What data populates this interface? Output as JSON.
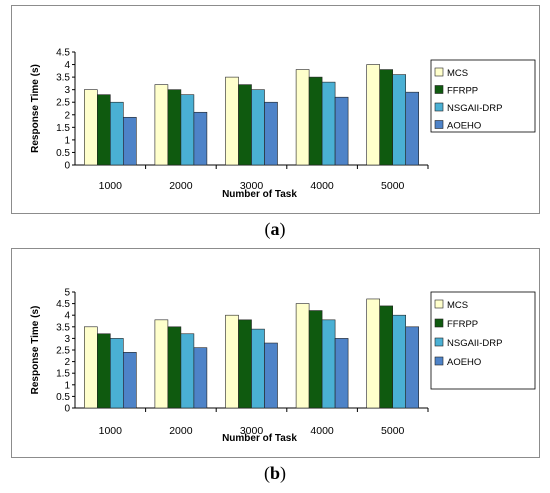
{
  "captions": {
    "a": {
      "open": "(",
      "letter": "a",
      "close": ")"
    },
    "b": {
      "open": "(",
      "letter": "b",
      "close": ")"
    }
  },
  "colors": {
    "MCS": "#ffffcc",
    "FFRPP": "#0f5a0f",
    "NSGAII-DRP": "#4ab0d4",
    "AOEHO": "#4e83c8",
    "grid": "#000000",
    "frame": "#8c8c8c"
  },
  "chart_data": [
    {
      "id": "a",
      "type": "bar",
      "categories": [
        "1000",
        "2000",
        "3000",
        "4000",
        "5000"
      ],
      "series": [
        {
          "name": "MCS",
          "values": [
            3.0,
            3.2,
            3.5,
            3.8,
            4.0
          ]
        },
        {
          "name": "FFRPP",
          "values": [
            2.8,
            3.0,
            3.2,
            3.5,
            3.8
          ]
        },
        {
          "name": "NSGAII-DRP",
          "values": [
            2.5,
            2.8,
            3.0,
            3.3,
            3.6
          ]
        },
        {
          "name": "AOEHO",
          "values": [
            1.9,
            2.1,
            2.5,
            2.7,
            2.9
          ]
        }
      ],
      "yticks": [
        "0",
        "0.5",
        "1",
        "1.5",
        "2",
        "2.5",
        "3",
        "3.5",
        "4",
        "4.5"
      ],
      "ylim": [
        0,
        4.5
      ],
      "xlabel": "Number of Task",
      "ylabel": "Response Time (s)",
      "legend": "right",
      "grid": false
    },
    {
      "id": "b",
      "type": "bar",
      "categories": [
        "1000",
        "2000",
        "3000",
        "4000",
        "5000"
      ],
      "series": [
        {
          "name": "MCS",
          "values": [
            3.5,
            3.8,
            4.0,
            4.5,
            4.7
          ]
        },
        {
          "name": "FFRPP",
          "values": [
            3.2,
            3.5,
            3.8,
            4.2,
            4.4
          ]
        },
        {
          "name": "NSGAII-DRP",
          "values": [
            3.0,
            3.2,
            3.4,
            3.8,
            4.0
          ]
        },
        {
          "name": "AOEHO",
          "values": [
            2.4,
            2.6,
            2.8,
            3.0,
            3.5
          ]
        }
      ],
      "yticks": [
        "0",
        "0.5",
        "1",
        "1.5",
        "2",
        "2.5",
        "3",
        "3.5",
        "4",
        "4.5",
        "5"
      ],
      "ylim": [
        0,
        5
      ],
      "xlabel": "Number of Task",
      "ylabel": "Response Time (s)",
      "legend": "right",
      "grid": false
    }
  ]
}
